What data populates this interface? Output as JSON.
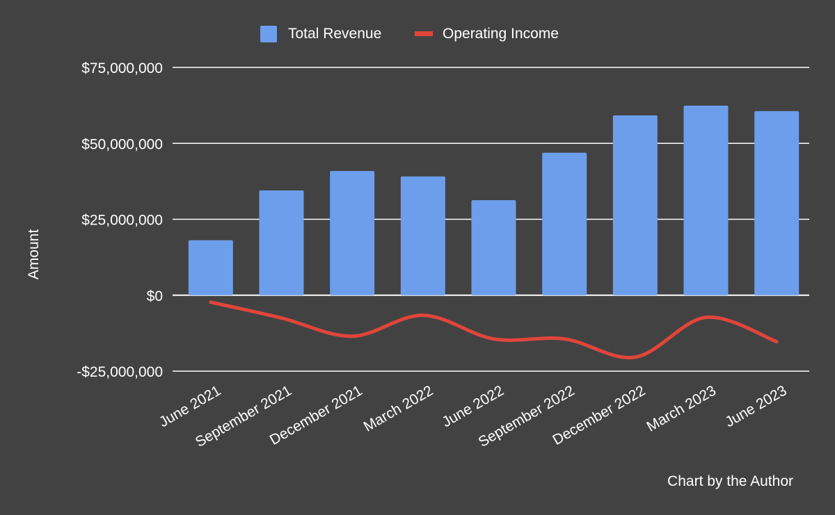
{
  "chart_data": {
    "type": "bar+line",
    "title": "",
    "xlabel": "",
    "ylabel": "Amount",
    "ylim": [
      -25000000,
      75000000
    ],
    "yticks": [
      -25000000,
      0,
      25000000,
      50000000,
      75000000
    ],
    "ytick_labels": [
      "-$25,000,000",
      "$0",
      "$25,000,000",
      "$50,000,000",
      "$75,000,000"
    ],
    "grid": true,
    "legend_position": "top",
    "categories": [
      "June 2021",
      "September 2021",
      "December 2021",
      "March 2022",
      "June 2022",
      "September 2022",
      "December 2022",
      "March 2023",
      "June 2023"
    ],
    "series": [
      {
        "name": "Total Revenue",
        "type": "bar",
        "color": "#6d9eeb",
        "values": [
          18100000,
          34500000,
          40900000,
          39100000,
          31300000,
          46900000,
          59200000,
          62400000,
          60600000
        ]
      },
      {
        "name": "Operating Income",
        "type": "line",
        "color": "#e0453a",
        "values": [
          -2300000,
          -7500000,
          -13500000,
          -6600000,
          -14400000,
          -14400000,
          -20400000,
          -7300000,
          -15300000
        ]
      }
    ],
    "annotation": "Chart by the Author"
  },
  "colors": {
    "background": "#424242",
    "grid": "#ffffff",
    "text": "#ffffff"
  }
}
